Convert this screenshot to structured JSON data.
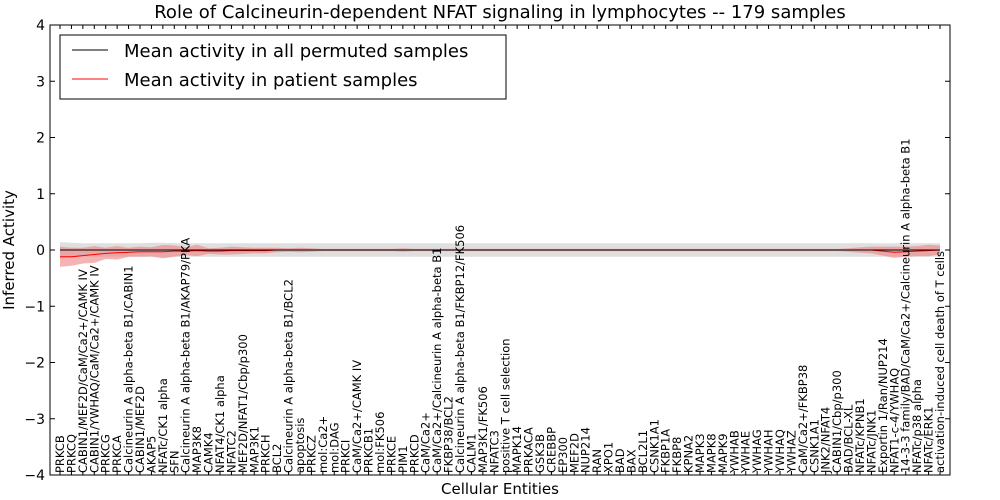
{
  "chart_data": {
    "type": "line",
    "title": "Role of Calcineurin-dependent NFAT signaling in lymphocytes -- 179 samples",
    "xlabel": "Cellular Entities",
    "ylabel": "Inferred Activity",
    "ylim": [
      -4,
      4
    ],
    "yticks": [
      -4,
      -3,
      -2,
      -1,
      0,
      1,
      2,
      3,
      4
    ],
    "ytick_labels": [
      "−4",
      "−3",
      "−2",
      "−1",
      "0",
      "1",
      "2",
      "3",
      "4"
    ],
    "grid": false,
    "legend_position": "top-left",
    "categories": [
      "PRKCB",
      "PRKCQ",
      "CABIN1/MEF2D/CaM/Ca2+/CAMK IV",
      "CABIN1/YWHAQ/CaM/Ca2+/CAMK IV",
      "PRKCG",
      "PRKCA",
      "Calcineurin A alpha-beta B1/CABIN1",
      "CABIN1/MEF2D",
      "AKAP5",
      "NFATc/CK1 alpha",
      "SFN",
      "Calcineurin A alpha-beta B1/AKAP79/PKA",
      "MAP3K8",
      "CAMK4",
      "NFAT4/CK1 alpha",
      "NFATC2",
      "MEF2D/NFAT1/Cbp/p300",
      "MAP3K1",
      "PRKCH",
      "BCL2",
      "Calcineurin A alpha-beta B1/BCL2",
      "apoptosis",
      "PRKCZ",
      "mol:Ca2+",
      "mol:DAG",
      "PRKCI",
      "CaM/Ca2+/CAMK IV",
      "PRKCB1",
      "mol:FK506",
      "PRKCE",
      "PIM1",
      "PRKCD",
      "CaM/Ca2+",
      "CaM/Ca2+/Calcineurin A alpha-beta B1",
      "FKBP38/BCL2",
      "Calcineurin A alpha-beta B1/FKBP12/FK506",
      "CALM1",
      "MAP3K1/FK506",
      "NFATC3",
      "positive T cell selection",
      "MAPK14",
      "PRKACA",
      "GSK3B",
      "CREBBP",
      "EP300",
      "MEF2D",
      "NUP214",
      "RAN",
      "XPO1",
      "BAD",
      "BAX",
      "BCL2L1",
      "CSNK1A1",
      "FKBP1A",
      "FKBP8",
      "KPNA2",
      "MAPK3",
      "MAPK8",
      "MAPK9",
      "YWHAB",
      "YWHAE",
      "YWHAG",
      "YWHAH",
      "YWHAQ",
      "YWHAZ",
      "CaM/Ca2+/FKBP38",
      "CSNK1A1",
      "JNK2/NFAT4",
      "CABIN1/Cbp/p300",
      "BAD/BCL-XL",
      "NFATc/KPNB1",
      "NFATc/JNK1",
      "Exportin 1/Ran/NUP214",
      "NFAT1-c-4/YWHAQ",
      "14-3-3 family/BAD/CaM/Ca2+/Calcineurin A alpha-beta B1",
      "NFATc/p38 alpha",
      "NFATc/ERK1",
      "activation-induced cell death of T cells"
    ],
    "series": [
      {
        "name": "Mean activity in all permuted samples",
        "color": "#000000",
        "band_color": "#bfbfbf",
        "values": [
          0,
          0,
          0,
          0,
          0,
          0,
          0,
          0,
          0,
          0,
          0,
          0,
          0,
          0,
          0,
          0,
          0,
          0,
          0,
          0,
          0,
          0,
          0,
          0,
          0,
          0,
          0,
          0,
          0,
          0,
          0,
          0,
          0,
          0,
          0,
          0,
          0,
          0,
          0,
          0,
          0,
          0,
          0,
          0,
          0,
          0,
          0,
          0,
          0,
          0,
          0,
          0,
          0,
          0,
          0,
          0,
          0,
          0,
          0,
          0,
          0,
          0,
          0,
          0,
          0,
          0,
          0,
          0,
          0,
          0,
          0,
          0,
          0,
          0,
          0,
          0,
          0,
          0
        ],
        "band": [
          0.14,
          0.13,
          0.12,
          0.12,
          0.12,
          0.12,
          0.12,
          0.12,
          0.13,
          0.13,
          0.12,
          0.12,
          0.12,
          0.12,
          0.12,
          0.12,
          0.12,
          0.12,
          0.12,
          0.12,
          0.12,
          0.12,
          0.12,
          0.12,
          0.12,
          0.12,
          0.12,
          0.12,
          0.12,
          0.12,
          0.12,
          0.12,
          0.12,
          0.12,
          0.12,
          0.12,
          0.12,
          0.12,
          0.12,
          0.12,
          0.12,
          0.12,
          0.12,
          0.12,
          0.12,
          0.12,
          0.12,
          0.12,
          0.12,
          0.12,
          0.12,
          0.12,
          0.12,
          0.12,
          0.12,
          0.12,
          0.12,
          0.12,
          0.12,
          0.12,
          0.12,
          0.12,
          0.12,
          0.12,
          0.12,
          0.12,
          0.12,
          0.12,
          0.12,
          0.12,
          0.12,
          0.12,
          0.12,
          0.12,
          0.12,
          0.12,
          0.12,
          0.12
        ]
      },
      {
        "name": "Mean activity in patient samples",
        "color": "#ff0000",
        "band_color": "#f08080",
        "values": [
          -0.12,
          -0.12,
          -0.1,
          -0.08,
          -0.06,
          -0.05,
          -0.04,
          -0.03,
          -0.03,
          -0.03,
          -0.02,
          -0.02,
          -0.01,
          -0.02,
          -0.02,
          -0.01,
          -0.01,
          -0.01,
          -0.01,
          0,
          0,
          0,
          0,
          0,
          0,
          0,
          0,
          0,
          0,
          0,
          0,
          0,
          0,
          0,
          0,
          0,
          0,
          0,
          0,
          0,
          0,
          0,
          0,
          0,
          0,
          0,
          0,
          0,
          0,
          0,
          0,
          0,
          0,
          0,
          0,
          0,
          0,
          0,
          0,
          0,
          0,
          0,
          0,
          0,
          0,
          0,
          0,
          0,
          0,
          0,
          0,
          0,
          -0.02,
          -0.04,
          -0.03,
          -0.02,
          -0.01,
          0
        ],
        "band": [
          0.18,
          0.16,
          0.14,
          0.15,
          0.1,
          0.12,
          0.08,
          0.09,
          0.08,
          0.12,
          0.1,
          0.07,
          0.1,
          0.05,
          0.06,
          0.07,
          0.06,
          0.05,
          0.05,
          0.04,
          0.03,
          0.04,
          0.03,
          0.02,
          0.02,
          0.02,
          0.02,
          0.02,
          0.02,
          0.02,
          0.03,
          0.02,
          0.02,
          0.02,
          0.02,
          0.02,
          0.02,
          0.02,
          0.02,
          0.02,
          0.02,
          0.02,
          0.02,
          0.02,
          0.02,
          0.02,
          0.02,
          0.02,
          0.02,
          0.02,
          0.02,
          0.02,
          0.02,
          0.02,
          0.02,
          0.02,
          0.02,
          0.02,
          0.02,
          0.02,
          0.02,
          0.02,
          0.02,
          0.02,
          0.02,
          0.02,
          0.02,
          0.02,
          0.02,
          0.03,
          0.05,
          0.06,
          0.08,
          0.1,
          0.09,
          0.09,
          0.1,
          0.08
        ]
      }
    ]
  }
}
